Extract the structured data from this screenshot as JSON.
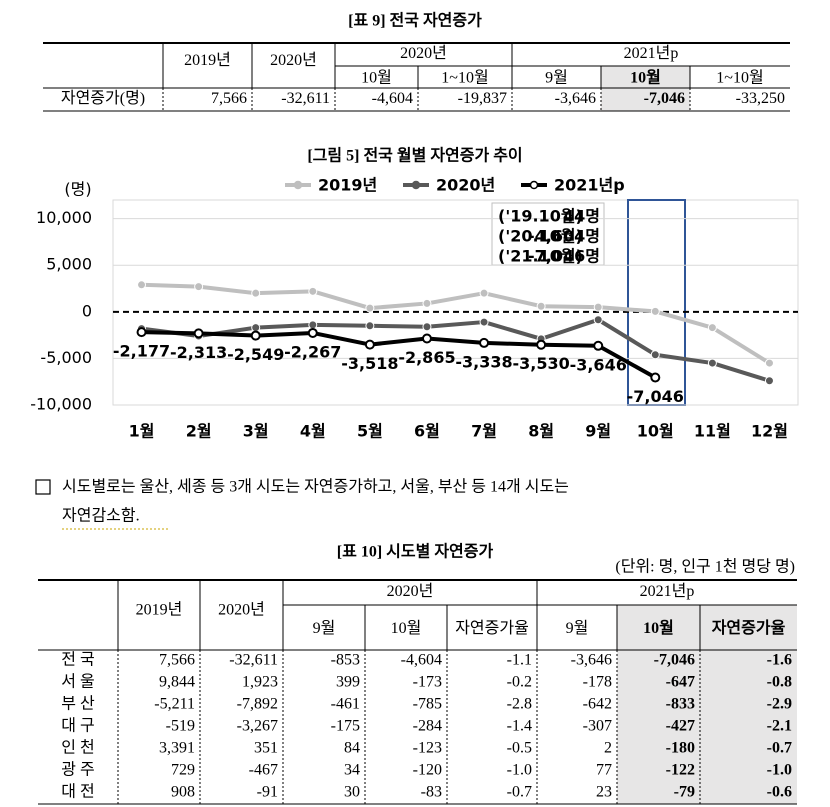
{
  "table9": {
    "title": "[표 9] 전국 자연증가",
    "top_headers": [
      "2019년",
      "2020년"
    ],
    "groups": [
      {
        "name": "2020년",
        "months": [
          "10월",
          "1~10월"
        ]
      },
      {
        "name": "2021년p",
        "months": [
          "9월",
          "10월",
          "1~10월"
        ]
      }
    ],
    "rows": [
      {
        "label": "자연증가(명)",
        "cells": [
          "7,566",
          "-32,611",
          "-4,604",
          "-19,837",
          "-3,646",
          "-7,046",
          "-33,250"
        ]
      }
    ]
  },
  "figure5": {
    "chart_data": {
      "type": "line",
      "title": "[그림 5] 전국 월별 자연증가 추이",
      "y_unit": "(명)",
      "categories": [
        "1월",
        "2월",
        "3월",
        "4월",
        "5월",
        "6월",
        "7월",
        "8월",
        "9월",
        "10월",
        "11월",
        "12월"
      ],
      "series": [
        {
          "name": "2019년",
          "color": "#bfbfbf",
          "values": [
            2900,
            2700,
            2000,
            2200,
            400,
            900,
            2000,
            600,
            500,
            44,
            -1700,
            -5500
          ]
        },
        {
          "name": "2020년",
          "color": "#595959",
          "values": [
            -1800,
            -2600,
            -1700,
            -1400,
            -1500,
            -1600,
            -1100,
            -2900,
            -853,
            -4604,
            -5500,
            -7400
          ]
        },
        {
          "name": "2021년p",
          "color": "#000000",
          "values": [
            -2177,
            -2313,
            -2549,
            -2267,
            -3518,
            -2865,
            -3338,
            -3530,
            -3646,
            -7046,
            null,
            null
          ],
          "value_labels": [
            "-2,177",
            "-2,313",
            "-2,549",
            "-2,267",
            "-3,518",
            "-2,865",
            "-3,338",
            "-3,530",
            "-3,646",
            "-7,046",
            null,
            null
          ]
        }
      ],
      "ylim": [
        -10000,
        12000
      ],
      "yticks": [
        {
          "value": 10000,
          "label": "10,000"
        },
        {
          "value": 5000,
          "label": "5,000"
        },
        0,
        {
          "value": -5000,
          "label": "-5,000"
        },
        {
          "value": -10000,
          "label": "-10,000"
        }
      ],
      "grid": true,
      "annotations": [
        {
          "period": "('19.10월)",
          "value": "44명"
        },
        {
          "period": "('20.10월)",
          "value": "-4,604명"
        },
        {
          "period": "('21.10월)",
          "value": "-7,046명"
        }
      ]
    }
  },
  "paragraph": {
    "lines": [
      "시도별로는 울산, 세종 등 3개 시도는 자연증가하고, 서울, 부산 등 14개 시도는",
      "자연감소함."
    ]
  },
  "table10": {
    "title": "[표 10] 시도별 자연증가",
    "unit": "(단위: 명, 인구 1천 명당 명)",
    "top_headers": [
      "2019년",
      "2020년"
    ],
    "groups": [
      {
        "name": "2020년",
        "months": [
          "9월",
          "10월",
          "자연증가율"
        ]
      },
      {
        "name": "2021년p",
        "months": [
          "9월",
          "10월",
          "자연증가율"
        ]
      }
    ],
    "rows": [
      {
        "label": "전 국",
        "cells": [
          "7,566",
          "-32,611",
          "-853",
          "-4,604",
          "-1.1",
          "-3,646",
          "-7,046",
          "-1.6"
        ]
      },
      {
        "label": "서 울",
        "cells": [
          "9,844",
          "1,923",
          "399",
          "-173",
          "-0.2",
          "-178",
          "-647",
          "-0.8"
        ]
      },
      {
        "label": "부 산",
        "cells": [
          "-5,211",
          "-7,892",
          "-461",
          "-785",
          "-2.8",
          "-642",
          "-833",
          "-2.9"
        ]
      },
      {
        "label": "대 구",
        "cells": [
          "-519",
          "-3,267",
          "-175",
          "-284",
          "-1.4",
          "-307",
          "-427",
          "-2.1"
        ]
      },
      {
        "label": "인 천",
        "cells": [
          "3,391",
          "351",
          "84",
          "-123",
          "-0.5",
          "2",
          "-180",
          "-0.7"
        ]
      },
      {
        "label": "광 주",
        "cells": [
          "729",
          "-467",
          "34",
          "-120",
          "-1.0",
          "77",
          "-122",
          "-1.0"
        ]
      },
      {
        "label": "대 전",
        "cells": [
          "908",
          "-91",
          "30",
          "-83",
          "-0.7",
          "23",
          "-79",
          "-0.6"
        ]
      }
    ]
  }
}
